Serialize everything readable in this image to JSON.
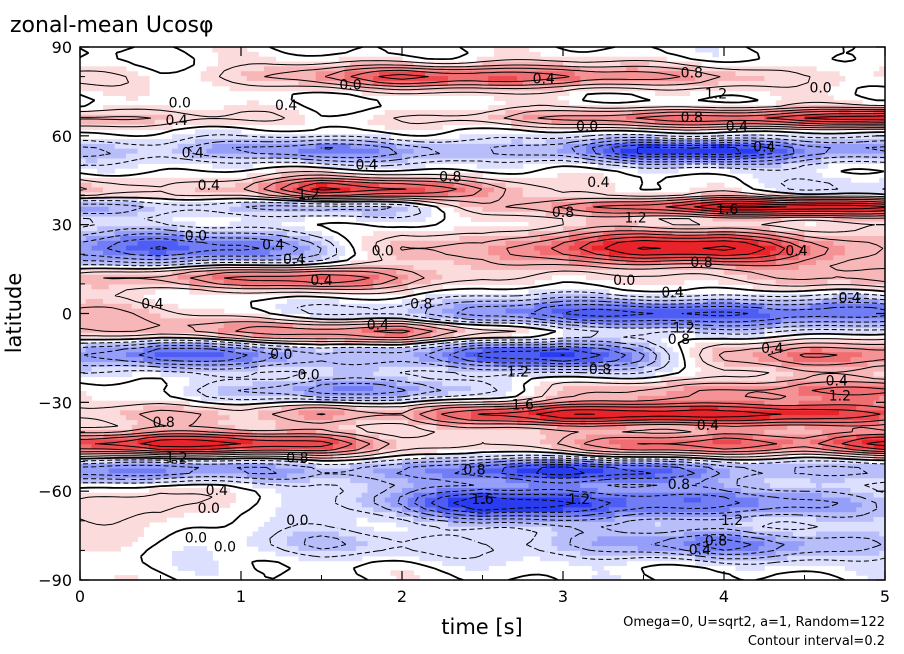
{
  "chart_data": {
    "type": "heatmap",
    "title": "zonal-mean Ucosφ",
    "xlabel": "time [s]",
    "ylabel": "latitude",
    "xlim": [
      0,
      5
    ],
    "ylim": [
      -90,
      90
    ],
    "x_ticks": [
      0,
      1,
      2,
      3,
      4,
      5
    ],
    "y_ticks": [
      -90,
      -60,
      -30,
      0,
      30,
      60,
      90
    ],
    "x_tick_labels": [
      "0",
      "1",
      "2",
      "3",
      "4",
      "5"
    ],
    "y_tick_labels": [
      "−90",
      "−60",
      "−30",
      "0",
      "30",
      "60",
      "90"
    ],
    "contour_interval": 0.2,
    "colors": {
      "positive": "#e8242a",
      "negative": "#2a3cf0",
      "zero": "#ffffff"
    },
    "note_params": "Omega=0, U=sqrt2, a=1, Random=122",
    "note_interval": "Contour interval=0.2",
    "bands": [
      {
        "lat": 80,
        "width": 4,
        "amp": [
          0.2,
          0.1,
          0.3,
          0.6,
          1.0,
          1.0,
          0.9,
          0.6,
          0.4,
          0.2,
          0.2
        ]
      },
      {
        "lat": 66,
        "width": 3,
        "amp": [
          0.5,
          0.4,
          0.2,
          0.0,
          0.2,
          0.4,
          0.6,
          0.8,
          1.0,
          1.2,
          1.4
        ]
      },
      {
        "lat": 55,
        "width": 4,
        "amp": [
          -0.4,
          -0.4,
          -0.6,
          -0.8,
          -0.6,
          -0.4,
          -0.6,
          -1.2,
          -1.4,
          -0.8,
          -0.6
        ]
      },
      {
        "lat": 42,
        "width": 4,
        "amp": [
          0.4,
          0.2,
          0.5,
          1.2,
          1.0,
          0.6,
          0.2,
          0.0,
          0.0,
          -0.2,
          -0.2
        ]
      },
      {
        "lat": 36,
        "width": 3,
        "amp": [
          -0.6,
          -0.4,
          -0.4,
          -0.6,
          -0.4,
          0.2,
          0.6,
          1.0,
          1.4,
          1.4,
          1.2
        ]
      },
      {
        "lat": 22,
        "width": 6,
        "amp": [
          -0.8,
          -1.0,
          -0.8,
          -0.4,
          0.4,
          0.4,
          1.0,
          1.4,
          1.4,
          0.8,
          0.4
        ]
      },
      {
        "lat": 12,
        "width": 4,
        "amp": [
          0.4,
          0.6,
          0.8,
          1.0,
          0.6,
          0.2,
          0.0,
          0.0,
          0.2,
          0.4,
          0.4
        ]
      },
      {
        "lat": 0,
        "width": 5,
        "amp": [
          0.4,
          0.2,
          0.0,
          -0.2,
          -0.4,
          -0.8,
          -1.0,
          -1.0,
          -1.0,
          -1.0,
          -0.8
        ]
      },
      {
        "lat": -6,
        "width": 4,
        "amp": [
          0.4,
          0.4,
          0.6,
          0.8,
          1.0,
          0.6,
          0.2,
          0.0,
          0.0,
          0.0,
          0.0
        ]
      },
      {
        "lat": -14,
        "width": 5,
        "amp": [
          -0.6,
          -1.0,
          -0.8,
          -0.4,
          -0.6,
          -1.0,
          -1.2,
          -0.6,
          0.4,
          0.8,
          0.8
        ]
      },
      {
        "lat": -26,
        "width": 4,
        "amp": [
          0.2,
          0.0,
          -0.4,
          -0.8,
          -0.6,
          -0.2,
          0.2,
          0.4,
          0.6,
          0.8,
          0.8
        ]
      },
      {
        "lat": -34,
        "width": 4,
        "amp": [
          0.2,
          0.4,
          0.4,
          0.6,
          0.4,
          1.0,
          1.4,
          1.4,
          1.2,
          1.2,
          1.0
        ]
      },
      {
        "lat": -44,
        "width": 4,
        "amp": [
          1.0,
          1.4,
          1.2,
          1.0,
          0.4,
          0.2,
          0.4,
          0.8,
          1.0,
          0.8,
          1.2
        ]
      },
      {
        "lat": -53,
        "width": 4,
        "amp": [
          -0.8,
          -0.8,
          -0.6,
          -0.4,
          -0.6,
          -1.0,
          -1.2,
          -1.0,
          -0.6,
          -0.4,
          -0.4
        ]
      },
      {
        "lat": -64,
        "width": 6,
        "amp": [
          0.2,
          0.4,
          0.0,
          -0.2,
          -0.6,
          -1.4,
          -1.2,
          -1.0,
          -0.8,
          -0.6,
          -0.4
        ]
      },
      {
        "lat": -78,
        "width": 5,
        "amp": [
          0.2,
          0.0,
          -0.2,
          -0.4,
          -0.2,
          -0.2,
          -0.4,
          -0.6,
          -0.8,
          -0.6,
          -0.4
        ]
      }
    ],
    "annotations": [
      {
        "t": 1.68,
        "lat": 77,
        "text": "0.0"
      },
      {
        "t": 2.88,
        "lat": 79,
        "text": "0.4"
      },
      {
        "t": 3.8,
        "lat": 81,
        "text": "0.8"
      },
      {
        "t": 3.95,
        "lat": 74,
        "text": "1.2"
      },
      {
        "t": 4.6,
        "lat": 76,
        "text": "0.0"
      },
      {
        "t": 0.62,
        "lat": 71,
        "text": "0.0"
      },
      {
        "t": 1.28,
        "lat": 70,
        "text": "0.4"
      },
      {
        "t": 0.6,
        "lat": 65,
        "text": "0.4"
      },
      {
        "t": 3.8,
        "lat": 66,
        "text": "0.8"
      },
      {
        "t": 3.15,
        "lat": 63,
        "text": "0.0"
      },
      {
        "t": 4.08,
        "lat": 63,
        "text": "0.4"
      },
      {
        "t": 0.7,
        "lat": 54,
        "text": "0.4"
      },
      {
        "t": 0.8,
        "lat": 43,
        "text": "0.4"
      },
      {
        "t": 1.42,
        "lat": 40,
        "text": "1.2"
      },
      {
        "t": 1.78,
        "lat": 50,
        "text": "0.4"
      },
      {
        "t": 2.3,
        "lat": 46,
        "text": "0.8"
      },
      {
        "t": 3.22,
        "lat": 44,
        "text": "0.4"
      },
      {
        "t": 4.25,
        "lat": 56,
        "text": "0.4"
      },
      {
        "t": 3.0,
        "lat": 34,
        "text": "0.8"
      },
      {
        "t": 3.45,
        "lat": 32,
        "text": "1.2"
      },
      {
        "t": 4.02,
        "lat": 35,
        "text": "1.6"
      },
      {
        "t": 0.72,
        "lat": 26,
        "text": "0.0"
      },
      {
        "t": 1.2,
        "lat": 23,
        "text": "0.4"
      },
      {
        "t": 1.33,
        "lat": 18,
        "text": "0.4"
      },
      {
        "t": 1.88,
        "lat": 21,
        "text": "0.0"
      },
      {
        "t": 1.5,
        "lat": 11,
        "text": "0.4"
      },
      {
        "t": 3.38,
        "lat": 11,
        "text": "0.0"
      },
      {
        "t": 3.86,
        "lat": 17,
        "text": "0.8"
      },
      {
        "t": 4.45,
        "lat": 21,
        "text": "0.4"
      },
      {
        "t": 3.68,
        "lat": 7,
        "text": "0.4"
      },
      {
        "t": 0.45,
        "lat": 3,
        "text": "0.4"
      },
      {
        "t": 2.12,
        "lat": 3,
        "text": "0.8"
      },
      {
        "t": 1.85,
        "lat": -4,
        "text": "0.4"
      },
      {
        "t": 3.75,
        "lat": -5,
        "text": "1.2"
      },
      {
        "t": 3.72,
        "lat": -9,
        "text": "0.8"
      },
      {
        "t": 4.3,
        "lat": -12,
        "text": "0.4"
      },
      {
        "t": 4.78,
        "lat": 5,
        "text": "0.4"
      },
      {
        "t": 1.25,
        "lat": -14,
        "text": "0.0"
      },
      {
        "t": 1.42,
        "lat": -21,
        "text": "0.0"
      },
      {
        "t": 2.72,
        "lat": -20,
        "text": "1.2"
      },
      {
        "t": 3.23,
        "lat": -19,
        "text": "0.8"
      },
      {
        "t": 4.7,
        "lat": -23,
        "text": "0.4"
      },
      {
        "t": 4.72,
        "lat": -28,
        "text": "1.2"
      },
      {
        "t": 2.75,
        "lat": -31,
        "text": "1.6"
      },
      {
        "t": 0.52,
        "lat": -37,
        "text": "0.8"
      },
      {
        "t": 3.9,
        "lat": -38,
        "text": "0.4"
      },
      {
        "t": 0.6,
        "lat": -49,
        "text": "1.2"
      },
      {
        "t": 1.35,
        "lat": -49,
        "text": "0.8"
      },
      {
        "t": 2.45,
        "lat": -53,
        "text": "0.8"
      },
      {
        "t": 3.72,
        "lat": -58,
        "text": "0.8"
      },
      {
        "t": 0.85,
        "lat": -60,
        "text": "0.4"
      },
      {
        "t": 2.5,
        "lat": -63,
        "text": "1.6"
      },
      {
        "t": 3.1,
        "lat": -63,
        "text": "1.2"
      },
      {
        "t": 0.8,
        "lat": -66,
        "text": "0.0"
      },
      {
        "t": 1.35,
        "lat": -70,
        "text": "0.0"
      },
      {
        "t": 4.05,
        "lat": -70,
        "text": "1.2"
      },
      {
        "t": 0.72,
        "lat": -76,
        "text": "0.0"
      },
      {
        "t": 0.9,
        "lat": -79,
        "text": "0.0"
      },
      {
        "t": 3.95,
        "lat": -77,
        "text": "0.8"
      },
      {
        "t": 3.85,
        "lat": -80,
        "text": "0.4"
      }
    ]
  }
}
